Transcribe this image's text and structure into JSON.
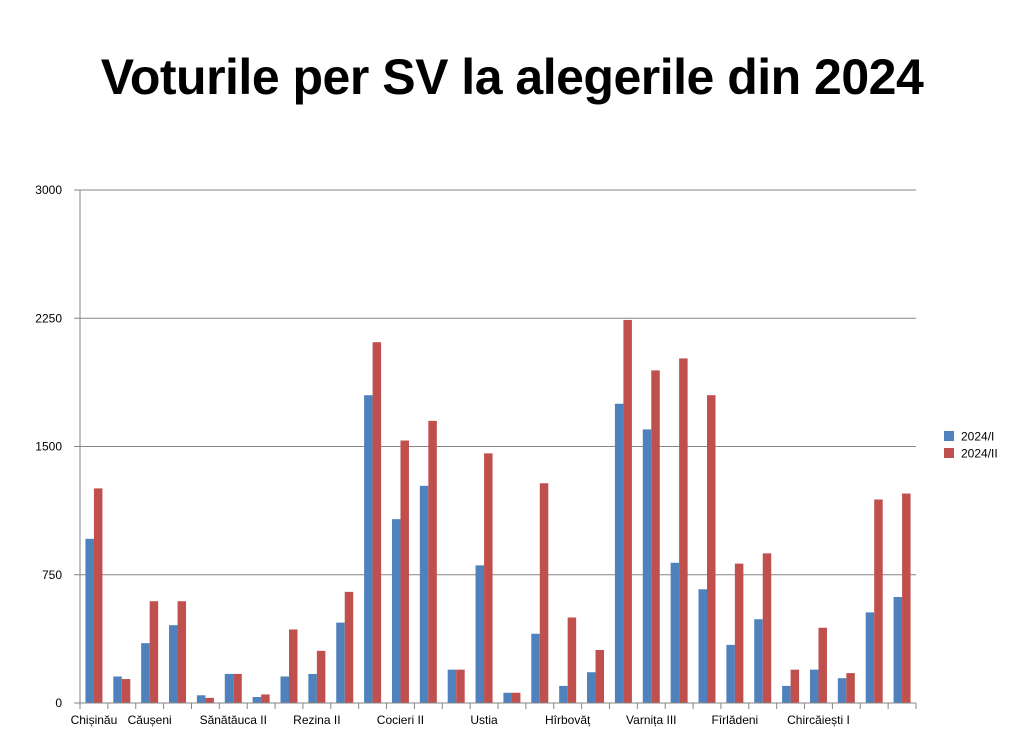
{
  "title": "Voturile per SV la alegerile din 2024",
  "chart_data": {
    "type": "bar",
    "title": "Voturile per SV la alegerile din 2024",
    "xlabel": "",
    "ylabel": "",
    "ylim": [
      0,
      3000
    ],
    "yticks": [
      0,
      750,
      1500,
      2250,
      3000
    ],
    "grid": true,
    "legend_position": "right",
    "category_labels": [
      {
        "index": 0,
        "label": "Chișinău"
      },
      {
        "index": 2,
        "label": "Căușeni"
      },
      {
        "index": 5,
        "label": "Sănătăuca II"
      },
      {
        "index": 8,
        "label": "Rezina II"
      },
      {
        "index": 11,
        "label": "Cocieri II"
      },
      {
        "index": 14,
        "label": "Ustia"
      },
      {
        "index": 17,
        "label": "Hîrbovăț"
      },
      {
        "index": 20,
        "label": "Varnița III"
      },
      {
        "index": 23,
        "label": "Fîrlădeni"
      },
      {
        "index": 26,
        "label": "Chircăiești I"
      }
    ],
    "series": [
      {
        "name": "2024/I",
        "color": "#4F81BD",
        "values": [
          960,
          155,
          350,
          455,
          45,
          170,
          35,
          155,
          170,
          470,
          1800,
          1075,
          1270,
          195,
          805,
          60,
          405,
          100,
          180,
          1750,
          1600,
          820,
          665,
          340,
          490,
          100,
          195,
          145,
          530,
          620
        ]
      },
      {
        "name": "2024/II",
        "color": "#C0504D",
        "values": [
          1255,
          140,
          595,
          595,
          30,
          170,
          50,
          430,
          305,
          650,
          2110,
          1535,
          1650,
          195,
          1460,
          60,
          1285,
          500,
          310,
          2240,
          1945,
          2015,
          1800,
          815,
          875,
          195,
          440,
          175,
          1190,
          1225
        ]
      }
    ]
  }
}
